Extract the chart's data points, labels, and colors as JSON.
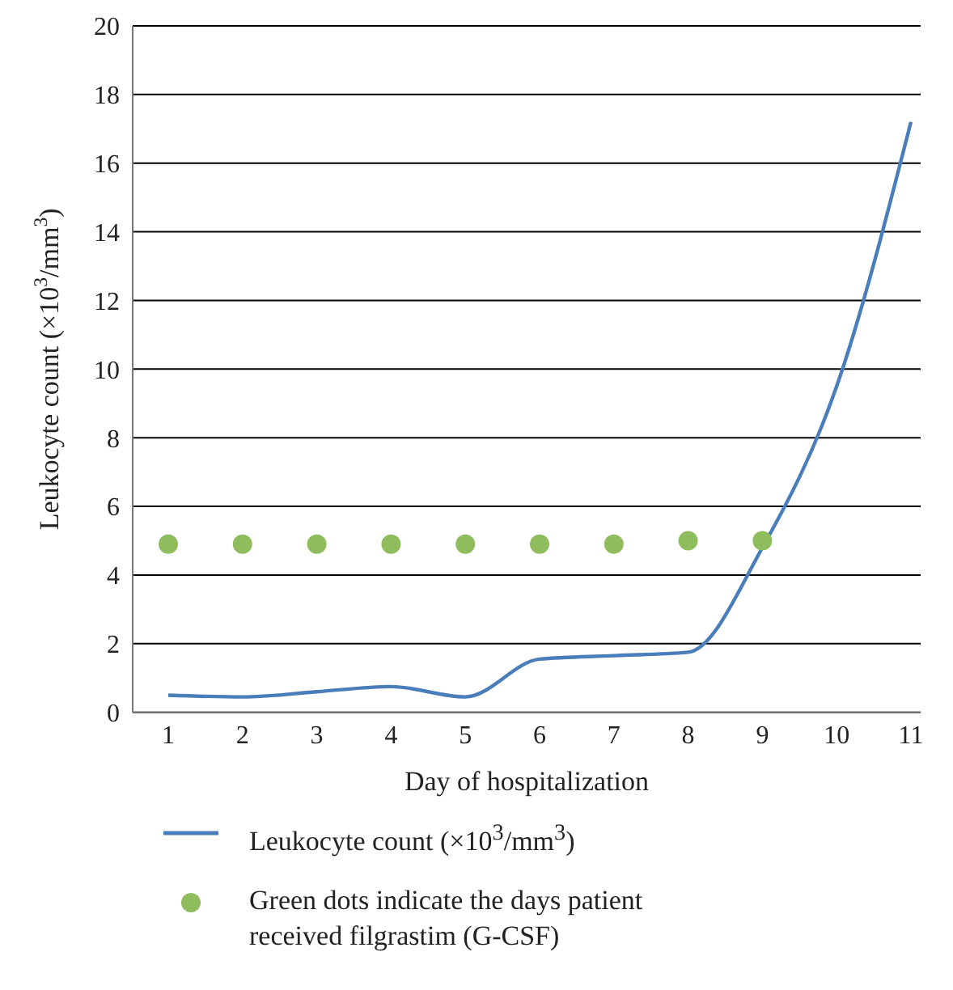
{
  "chart_data": {
    "type": "line",
    "xlabel": "Day of hospitalization",
    "ylabel": "Leukocyte count (×10$^{3}$/mm$^{3}$)",
    "categories": [
      "1",
      "2",
      "3",
      "4",
      "5",
      "6",
      "7",
      "8",
      "9",
      "10",
      "11"
    ],
    "series": [
      {
        "name": "Leukocyte count (×10$^{3}$/mm$^{3}$)",
        "color": "#4a7ebb",
        "marker": "none",
        "values": [
          0.5,
          0.45,
          0.6,
          0.75,
          0.45,
          1.55,
          1.65,
          1.75,
          4.8,
          9.5,
          17.2
        ]
      },
      {
        "type": "scatter",
        "name": "Green dots indicate the days patient received filgrastim (G-CSF)",
        "color": "#8fbc5c",
        "marker": "circle",
        "x": [
          "1",
          "2",
          "3",
          "4",
          "5",
          "6",
          "7",
          "8",
          "9"
        ],
        "values": [
          4.9,
          4.9,
          4.9,
          4.9,
          4.9,
          4.9,
          4.9,
          5.0,
          5.0
        ]
      }
    ],
    "ylim": [
      0,
      20
    ],
    "yticks": [
      0,
      2,
      4,
      6,
      8,
      10,
      12,
      14,
      16,
      18,
      20
    ],
    "grid": "y",
    "legend": "bottom",
    "line_style": "solid"
  }
}
